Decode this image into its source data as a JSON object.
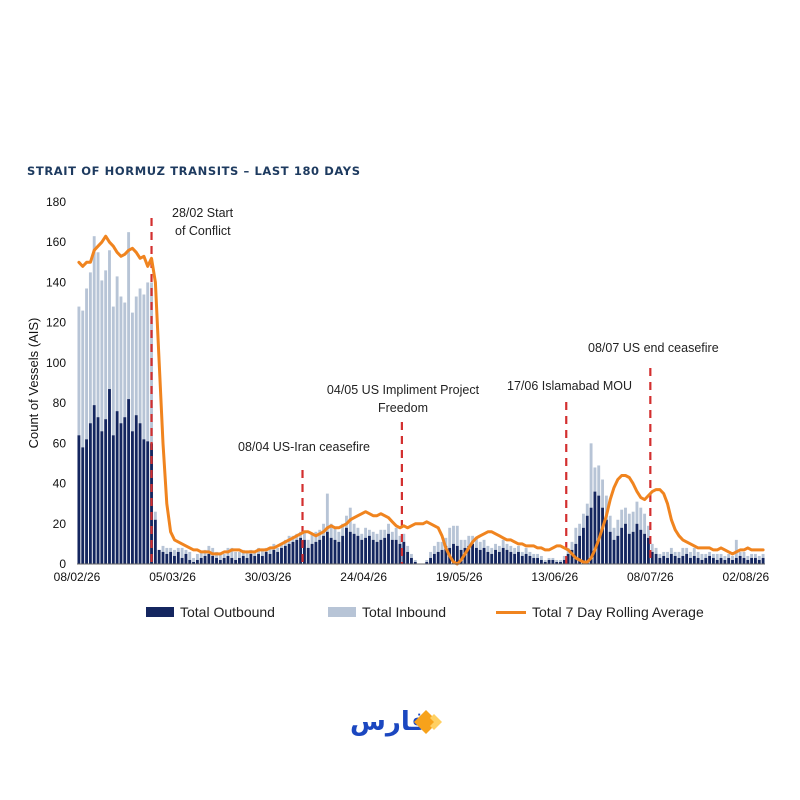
{
  "page": {
    "title": "STRAIT OF HORMUZ TRANSITS – LAST 180 DAYS",
    "logo_text": "فارس"
  },
  "colors": {
    "outbound": "#14265f",
    "inbound": "#b7c4d6",
    "rolling": "#f0841f",
    "event_line": "#d32f2f",
    "title": "#1d3a5f",
    "logo_blue": "#1b47c0",
    "logo_orange": "#f7a21b"
  },
  "chart_data": {
    "type": "bar",
    "stacked": true,
    "ylabel": "Count of Vessels (AIS)",
    "ylim": [
      0,
      180
    ],
    "yticks": [
      0,
      20,
      40,
      60,
      80,
      100,
      120,
      140,
      160,
      180
    ],
    "x_tick_labels": [
      "08/02/26",
      "05/03/26",
      "30/03/26",
      "24/04/26",
      "19/05/26",
      "13/06/26",
      "08/07/26",
      "02/08/26"
    ],
    "x_tick_days": [
      0,
      25,
      50,
      75,
      100,
      125,
      150,
      175
    ],
    "legend_entries": [
      "Total Outbound",
      "Total Inbound",
      "Total 7 Day Rolling Average"
    ],
    "series": [
      {
        "name": "Total Outbound",
        "values": [
          64,
          58,
          62,
          70,
          79,
          73,
          66,
          72,
          87,
          64,
          76,
          70,
          73,
          82,
          66,
          74,
          70,
          62,
          61,
          60,
          22,
          7,
          6,
          5,
          6,
          4,
          6,
          3,
          5,
          2,
          1,
          2,
          3,
          4,
          5,
          4,
          3,
          2,
          3,
          4,
          3,
          2,
          3,
          4,
          3,
          5,
          4,
          5,
          4,
          6,
          5,
          7,
          6,
          8,
          9,
          10,
          11,
          12,
          13,
          12,
          8,
          10,
          11,
          12,
          14,
          16,
          13,
          12,
          11,
          14,
          18,
          16,
          15,
          14,
          12,
          13,
          14,
          12,
          11,
          12,
          13,
          15,
          12,
          12,
          10,
          11,
          6,
          3,
          1,
          0,
          0,
          1,
          3,
          5,
          6,
          7,
          9,
          8,
          10,
          9,
          7,
          8,
          9,
          10,
          8,
          7,
          8,
          6,
          5,
          7,
          6,
          8,
          7,
          6,
          5,
          6,
          4,
          5,
          4,
          3,
          3,
          2,
          1,
          2,
          2,
          1,
          1,
          2,
          5,
          7,
          10,
          14,
          18,
          24,
          28,
          36,
          34,
          28,
          22,
          16,
          12,
          14,
          18,
          20,
          15,
          16,
          20,
          17,
          15,
          13,
          6,
          5,
          3,
          4,
          3,
          5,
          4,
          3,
          4,
          5,
          3,
          4,
          3,
          2,
          3,
          4,
          3,
          2,
          3,
          2,
          3,
          2,
          3,
          4,
          3,
          2,
          3,
          3,
          2,
          3
        ]
      },
      {
        "name": "Total Inbound",
        "values": [
          64,
          68,
          75,
          75,
          84,
          82,
          75,
          74,
          69,
          64,
          67,
          63,
          57,
          83,
          59,
          59,
          67,
          72,
          79,
          80,
          4,
          0,
          3,
          3,
          2,
          3,
          2,
          5,
          2,
          4,
          2,
          3,
          3,
          3,
          4,
          4,
          3,
          3,
          2,
          4,
          5,
          4,
          3,
          3,
          3,
          2,
          2,
          3,
          3,
          2,
          3,
          3,
          2,
          2,
          3,
          4,
          3,
          3,
          3,
          4,
          4,
          5,
          5,
          5,
          6,
          19,
          7,
          6,
          5,
          6,
          6,
          12,
          5,
          4,
          3,
          5,
          3,
          4,
          4,
          5,
          4,
          5,
          4,
          6,
          4,
          4,
          3,
          2,
          1,
          0,
          0,
          1,
          3,
          4,
          5,
          4,
          4,
          10,
          9,
          10,
          5,
          4,
          5,
          4,
          5,
          4,
          4,
          3,
          3,
          3,
          3,
          4,
          3,
          3,
          3,
          3,
          2,
          3,
          2,
          2,
          2,
          2,
          1,
          1,
          1,
          1,
          1,
          2,
          3,
          4,
          8,
          6,
          7,
          6,
          32,
          12,
          15,
          14,
          12,
          8,
          6,
          8,
          9,
          8,
          10,
          10,
          11,
          11,
          10,
          6,
          4,
          3,
          2,
          2,
          3,
          3,
          2,
          3,
          4,
          3,
          3,
          4,
          3,
          3,
          2,
          2,
          2,
          3,
          2,
          2,
          2,
          2,
          9,
          2,
          3,
          2,
          2,
          2,
          2,
          2
        ]
      },
      {
        "name": "Total 7 Day Rolling Average",
        "type": "line",
        "values": [
          150,
          148,
          150,
          150,
          156,
          158,
          160,
          163,
          160,
          158,
          155,
          153,
          154,
          156,
          157,
          155,
          152,
          153,
          148,
          152,
          140,
          100,
          60,
          30,
          16,
          12,
          11,
          10,
          9,
          8,
          7,
          7,
          6,
          6,
          6,
          5,
          5,
          5,
          6,
          6,
          7,
          7,
          7,
          6,
          6,
          6,
          6,
          7,
          7,
          7,
          8,
          8,
          9,
          10,
          11,
          12,
          13,
          14,
          15,
          16,
          16,
          15,
          14,
          15,
          16,
          18,
          19,
          18,
          18,
          19,
          20,
          22,
          23,
          24,
          25,
          26,
          25,
          24,
          24,
          25,
          24,
          23,
          21,
          19,
          18,
          19,
          18,
          19,
          20,
          20,
          20,
          21,
          20,
          19,
          18,
          14,
          8,
          4,
          1,
          0,
          2,
          5,
          8,
          11,
          13,
          14,
          15,
          16,
          16,
          15,
          14,
          13,
          12,
          12,
          11,
          10,
          10,
          9,
          9,
          9,
          8,
          8,
          7,
          7,
          8,
          9,
          9,
          8,
          7,
          5,
          3,
          2,
          1,
          1,
          3,
          7,
          12,
          18,
          24,
          32,
          38,
          42,
          44,
          44,
          43,
          40,
          36,
          33,
          32,
          34,
          36,
          37,
          37,
          35,
          30,
          22,
          17,
          14,
          12,
          11,
          10,
          9,
          8,
          8,
          8,
          8,
          7,
          7,
          8,
          7,
          6,
          5,
          6,
          7,
          7,
          8,
          7,
          7,
          7,
          7
        ]
      }
    ],
    "annotations": [
      {
        "day": 19.5,
        "lines": [
          "28/02 Start",
          "of Conflict"
        ]
      },
      {
        "day": 59,
        "lines": [
          "08/04 US-Iran ceasefire"
        ]
      },
      {
        "day": 85,
        "lines": [
          "04/05 US Impliment Project",
          "Freedom"
        ]
      },
      {
        "day": 128,
        "lines": [
          "17/06 Islamabad MOU"
        ]
      },
      {
        "day": 150,
        "lines": [
          "08/07 US end ceasefire"
        ]
      }
    ],
    "grid": false,
    "legend_position": "bottom"
  }
}
